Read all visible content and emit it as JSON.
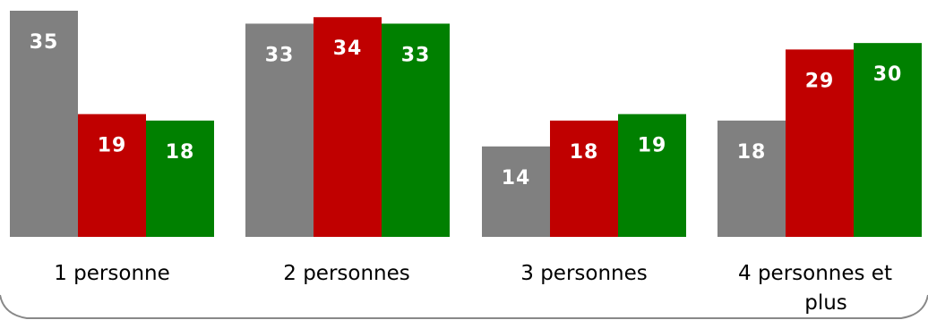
{
  "chart_data": {
    "type": "bar",
    "categories": [
      "1 personne",
      "2 personnes",
      "3 personnes",
      "4 personnes et plus"
    ],
    "category_lines": [
      [
        "1 personne"
      ],
      [
        "2 personnes"
      ],
      [
        "3 personnes"
      ],
      [
        "4 personnes et",
        "plus"
      ]
    ],
    "series": [
      {
        "color": "#808080",
        "values": [
          35,
          33,
          14,
          18
        ]
      },
      {
        "color": "#C00000",
        "values": [
          19,
          34,
          18,
          29
        ]
      },
      {
        "color": "#008000",
        "values": [
          18,
          33,
          19,
          30
        ]
      }
    ],
    "ylim": [
      0,
      35
    ],
    "grid": false,
    "legend": "none"
  }
}
